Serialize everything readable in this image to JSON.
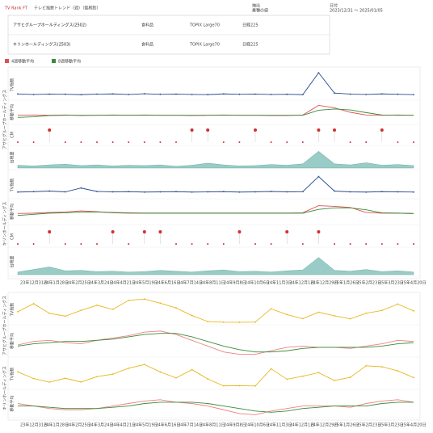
{
  "header": {
    "title": "TV Rank FT",
    "subtitle": "テレビ指数トレンド（週）（銘柄別）",
    "filter_label": "抽出",
    "filter_value": "業種の値",
    "date_label": "日付",
    "date_value": "2023/12/31 ～ 2025/01/05"
  },
  "companies": [
    {
      "name": "アサヒグループホールディングス(2502)",
      "short": "アサヒグループホールディングス",
      "sector": "食料品",
      "index": "TOPIX Large70",
      "nikkei": "日経225"
    },
    {
      "name": "キリンホールディングス(2503)",
      "short": "キリンホールディングス",
      "sector": "食料品",
      "index": "TOPIX Large70",
      "nikkei": "日経225"
    }
  ],
  "legend": [
    {
      "name": "4週移動平均",
      "color": "#e05050"
    },
    {
      "name": "8週移動平均",
      "color": "#3a8a3a"
    }
  ],
  "x_axis_labels": [
    "23年12月31日",
    "24年1月28日",
    "24年2月25日",
    "24年3月24日",
    "24年4月21日",
    "24年5月19日",
    "24年6月16日",
    "24年7月14日",
    "24年8月11日",
    "24年9月8日",
    "24年10月6日",
    "24年11月3日",
    "24年12月1日",
    "24年12月29日",
    "25年1月26日",
    "25年2月23日",
    "25年3月23日",
    "25年4月20日"
  ],
  "chart_data": [
    {
      "type": "line",
      "ylabel": "TV指数",
      "ylim": [
        0,
        16
      ],
      "series": [
        {
          "name": "TV指数",
          "color": "#2a4d8f",
          "values": [
            2.7,
            2.4,
            2.6,
            2.5,
            2.3,
            2.6,
            2.7,
            2.4,
            2.8,
            2.5,
            2.6,
            2.4,
            2.3,
            2.7,
            2.5,
            2.6,
            2.4,
            2.5,
            2.3,
            15.0,
            3.2,
            2.6,
            2.4,
            2.7,
            2.5,
            2.3
          ]
        }
      ]
    },
    {
      "type": "line",
      "ylabel": "移動平均",
      "ylim": [
        0,
        7
      ],
      "series": [
        {
          "name": "4週移動平均",
          "color": "#e05050",
          "values": [
            2.5,
            2.6,
            2.5,
            2.6,
            2.4,
            2.5,
            2.6,
            2.5,
            2.6,
            2.5,
            2.5,
            2.4,
            2.5,
            2.6,
            2.5,
            2.5,
            2.4,
            2.4,
            2.6,
            5.8,
            5.0,
            3.5,
            2.6,
            2.5,
            2.6,
            2.5
          ]
        },
        {
          "name": "8週移動平均",
          "color": "#3a8a3a",
          "values": [
            1.8,
            2.0,
            2.4,
            2.5,
            2.5,
            2.5,
            2.5,
            2.5,
            2.5,
            2.5,
            2.5,
            2.5,
            2.5,
            2.5,
            2.5,
            2.5,
            2.5,
            2.5,
            2.5,
            4.2,
            4.6,
            4.3,
            3.4,
            2.6,
            2.5,
            2.5
          ]
        }
      ]
    },
    {
      "type": "event",
      "ylabel": "CM",
      "color": "#d03030",
      "values": [
        0,
        0,
        1,
        0,
        0,
        0,
        0,
        0,
        0,
        0,
        0,
        1,
        1,
        0,
        0,
        1,
        0,
        0,
        0,
        1,
        1,
        0,
        0,
        1,
        0,
        0
      ]
    },
    {
      "type": "area",
      "ylabel": "出稿量",
      "ylim": [
        0,
        6
      ],
      "color": "#7fbfb8",
      "values": [
        0.8,
        0.6,
        0.9,
        1.1,
        0.7,
        0.9,
        0.6,
        0.8,
        0.7,
        0.9,
        0.5,
        0.8,
        1.4,
        0.9,
        0.6,
        0.7,
        1.0,
        0.8,
        1.2,
        4.8,
        1.2,
        0.9,
        1.5,
        0.8,
        1.0,
        0.7
      ]
    },
    {
      "type": "line",
      "ylabel": "TV指数",
      "ylim": [
        0,
        12
      ],
      "series": [
        {
          "name": "TV指数",
          "color": "#2a4d8f",
          "values": [
            2.5,
            2.7,
            3.0,
            2.6,
            4.5,
            2.8,
            2.6,
            2.7,
            2.5,
            2.6,
            2.7,
            2.5,
            2.6,
            2.7,
            2.5,
            2.6,
            2.8,
            2.6,
            2.7,
            10.2,
            3.0,
            2.6,
            2.5,
            2.7,
            2.6,
            2.5
          ]
        }
      ]
    },
    {
      "type": "line",
      "ylabel": "移動平均",
      "ylim": [
        0,
        6
      ],
      "series": [
        {
          "name": "4週移動平均",
          "color": "#e05050",
          "values": [
            2.5,
            2.6,
            2.8,
            2.9,
            3.2,
            3.0,
            2.7,
            2.6,
            2.6,
            2.6,
            2.6,
            2.6,
            2.6,
            2.6,
            2.6,
            2.6,
            2.6,
            2.6,
            2.7,
            4.6,
            4.4,
            4.1,
            2.8,
            2.6,
            2.6,
            2.5
          ]
        },
        {
          "name": "8週移動平均",
          "color": "#3a8a3a",
          "values": [
            2.0,
            2.3,
            2.6,
            2.7,
            2.9,
            2.9,
            2.8,
            2.7,
            2.6,
            2.6,
            2.6,
            2.6,
            2.6,
            2.6,
            2.6,
            2.6,
            2.6,
            2.6,
            2.6,
            3.6,
            4.0,
            4.0,
            3.5,
            2.7,
            2.6,
            2.5
          ]
        }
      ]
    },
    {
      "type": "event",
      "ylabel": "CM",
      "color": "#d03030",
      "values": [
        0,
        0,
        1,
        0,
        0,
        0,
        1,
        0,
        1,
        1,
        0,
        0,
        0,
        0,
        1,
        0,
        0,
        1,
        0,
        1,
        0,
        0,
        0,
        0,
        0,
        0
      ]
    },
    {
      "type": "area",
      "ylabel": "出稿量",
      "ylim": [
        0,
        6
      ],
      "color": "#7fbfb8",
      "values": [
        0.6,
        1.2,
        1.8,
        0.9,
        1.0,
        0.7,
        0.8,
        0.6,
        0.7,
        1.0,
        0.8,
        0.6,
        0.9,
        1.1,
        0.7,
        0.8,
        0.6,
        0.9,
        1.1,
        4.0,
        1.0,
        0.8,
        1.2,
        0.7,
        0.9,
        0.6
      ]
    },
    {
      "type": "line",
      "ylabel": "TV指数",
      "ylim": [
        0,
        26
      ],
      "series": [
        {
          "name": "TV指数",
          "color": "#e8b820",
          "values": [
            10.8,
            18.4,
            9.3,
            6.6,
            12.1,
            16.9,
            13.0,
            21.6,
            22.8,
            18.9,
            14.4,
            7.2,
            1.5,
            0.9,
            0.8,
            1.0,
            13.6,
            8.1,
            4.3,
            10.3,
            6.9,
            4.1,
            9.3,
            12.0,
            18.0,
            11.6
          ]
        }
      ]
    },
    {
      "type": "line",
      "ylabel": "移動平均",
      "ylim": [
        0,
        25
      ],
      "series": [
        {
          "name": "4週移動平均",
          "color": "#f08080",
          "values": [
            9,
            12,
            13,
            11,
            10,
            13,
            15,
            17,
            20,
            21,
            18,
            13,
            8,
            3,
            1,
            1,
            4,
            7,
            8,
            7,
            7,
            6,
            8,
            10,
            13,
            12
          ]
        },
        {
          "name": "8週移動平均",
          "color": "#3a8a3a",
          "values": [
            8,
            10,
            11,
            12,
            12,
            13,
            14,
            16,
            18,
            19,
            19,
            16,
            12,
            8,
            5,
            3,
            3,
            4,
            6,
            7,
            7,
            7,
            7,
            8,
            10,
            11
          ]
        }
      ]
    },
    {
      "type": "line",
      "ylabel": "TV指数",
      "ylim": [
        0,
        20
      ],
      "series": [
        {
          "name": "TV指数",
          "color": "#e8b820",
          "values": [
            11.6,
            6.7,
            4.1,
            6.9,
            4.2,
            8.1,
            9.9,
            14.2,
            16.9,
            11.5,
            7.2,
            13.2,
            6.4,
            1.4,
            1.5,
            1.3,
            13.8,
            6.2,
            8.4,
            11.0,
            5.3,
            7.6,
            16.0,
            15.3,
            12.3,
            7.4
          ]
        }
      ]
    },
    {
      "type": "line",
      "ylabel": "移動平均",
      "ylim": [
        0,
        20
      ],
      "series": [
        {
          "name": "4週移動平均",
          "color": "#f08080",
          "values": [
            10,
            8,
            6,
            5,
            5,
            6,
            8,
            10,
            12,
            13,
            11,
            10,
            8,
            5,
            2,
            1,
            4,
            6,
            8,
            8,
            8,
            7,
            10,
            12,
            13,
            11
          ]
        },
        {
          "name": "8週移動平均",
          "color": "#3a8a3a",
          "values": [
            8,
            8,
            7,
            6,
            6,
            6,
            7,
            8,
            10,
            11,
            11,
            11,
            10,
            8,
            6,
            4,
            3,
            4,
            6,
            7,
            8,
            8,
            8,
            10,
            11,
            11
          ]
        }
      ]
    }
  ]
}
